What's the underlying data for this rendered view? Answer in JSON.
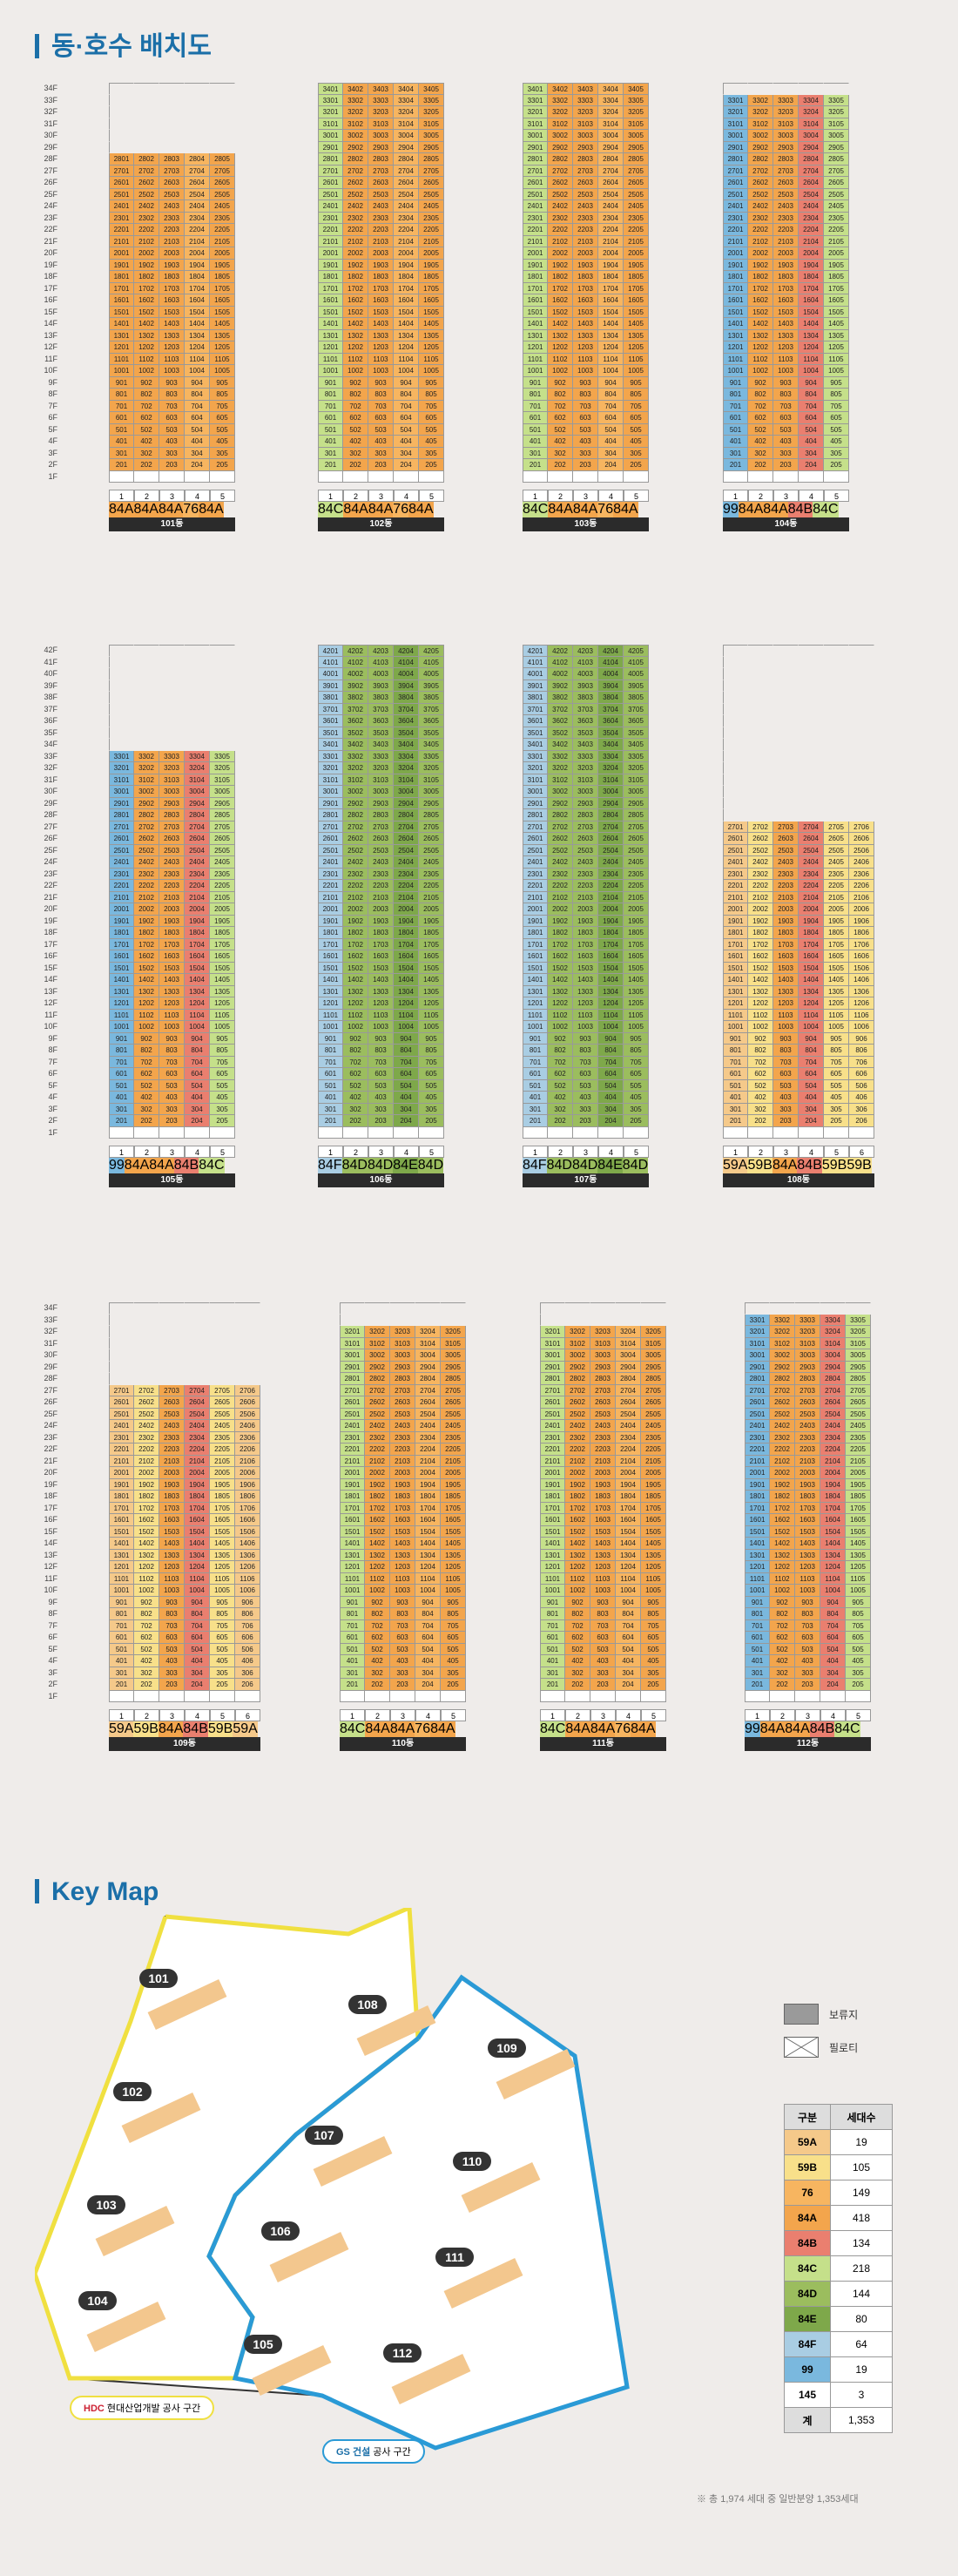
{
  "title_layout": "동·호수 배치도",
  "title_keymap": "Key Map",
  "type_colors": {
    "59A": "#f5c98a",
    "59B": "#f8e08a",
    "76": "#f7b560",
    "84A": "#f3a54c",
    "84B": "#ea7f6f",
    "84C": "#c5e08a",
    "84D": "#9bbd5e",
    "84E": "#7ea84a",
    "84F": "#a9cde3",
    "99": "#7ab8de",
    "145": "#ffffff",
    "hold": "#9a9a9a"
  },
  "buildings": [
    {
      "id": "101",
      "label": "101동",
      "floors": 28,
      "types": [
        "84A",
        "84A",
        "84A",
        "76",
        "84A"
      ],
      "nums": [
        "1",
        "2",
        "3",
        "4",
        "5"
      ]
    },
    {
      "id": "102",
      "label": "102동",
      "floors": 34,
      "types": [
        "84C",
        "84A",
        "84A",
        "76",
        "84A"
      ],
      "nums": [
        "1",
        "2",
        "3",
        "4",
        "5"
      ]
    },
    {
      "id": "103",
      "label": "103동",
      "floors": 34,
      "types": [
        "84C",
        "84A",
        "84A",
        "76",
        "84A"
      ],
      "nums": [
        "1",
        "2",
        "3",
        "4",
        "5"
      ]
    },
    {
      "id": "104",
      "label": "104동",
      "floors": 33,
      "types": [
        "99",
        "84A",
        "84A",
        "84B",
        "84C"
      ],
      "nums": [
        "1",
        "2",
        "3",
        "4",
        "5"
      ]
    },
    {
      "id": "105",
      "label": "105동",
      "floors": 33,
      "types": [
        "99",
        "84A",
        "84A",
        "84B",
        "84C"
      ],
      "nums": [
        "1",
        "2",
        "3",
        "4",
        "5"
      ]
    },
    {
      "id": "106",
      "label": "106동",
      "floors": 42,
      "types": [
        "84F",
        "84D",
        "84D",
        "84E",
        "84D"
      ],
      "nums": [
        "1",
        "2",
        "3",
        "4",
        "5"
      ]
    },
    {
      "id": "107",
      "label": "107동",
      "floors": 42,
      "types": [
        "84F",
        "84D",
        "84D",
        "84E",
        "84D"
      ],
      "nums": [
        "1",
        "2",
        "3",
        "4",
        "5"
      ]
    },
    {
      "id": "108",
      "label": "108동",
      "floors": 27,
      "types": [
        "59A",
        "59B",
        "84A",
        "84B",
        "59B",
        "59B"
      ],
      "nums": [
        "1",
        "2",
        "3",
        "4",
        "5",
        "6"
      ]
    },
    {
      "id": "109",
      "label": "109동",
      "floors": 27,
      "types": [
        "59A",
        "59B",
        "84A",
        "84B",
        "59B",
        "59A"
      ],
      "nums": [
        "1",
        "2",
        "3",
        "4",
        "5",
        "6"
      ]
    },
    {
      "id": "110",
      "label": "110동",
      "floors": 32,
      "types": [
        "84C",
        "84A",
        "84A",
        "76",
        "84A"
      ],
      "nums": [
        "1",
        "2",
        "3",
        "4",
        "5"
      ]
    },
    {
      "id": "111",
      "label": "111동",
      "floors": 32,
      "types": [
        "84C",
        "84A",
        "84A",
        "76",
        "84A"
      ],
      "nums": [
        "1",
        "2",
        "3",
        "4",
        "5"
      ]
    },
    {
      "id": "112",
      "label": "112동",
      "floors": 33,
      "types": [
        "99",
        "84A",
        "84A",
        "84B",
        "84C"
      ],
      "nums": [
        "1",
        "2",
        "3",
        "4",
        "5"
      ]
    }
  ],
  "keymap": {
    "buildings": [
      "101",
      "102",
      "103",
      "104",
      "105",
      "106",
      "107",
      "108",
      "109",
      "110",
      "111",
      "112"
    ],
    "hdc_label": "현대산업개발 공사 구간",
    "gs_label": "공사 구간",
    "hdc_logo": "HDC",
    "gs_logo": "GS 건설"
  },
  "legend": {
    "hold": "보류지",
    "pilot": "필로티"
  },
  "type_table": {
    "header": [
      "구분",
      "세대수"
    ],
    "rows": [
      [
        "59A",
        "19"
      ],
      [
        "59B",
        "105"
      ],
      [
        "76",
        "149"
      ],
      [
        "84A",
        "418"
      ],
      [
        "84B",
        "134"
      ],
      [
        "84C",
        "218"
      ],
      [
        "84D",
        "144"
      ],
      [
        "84E",
        "80"
      ],
      [
        "84F",
        "64"
      ],
      [
        "99",
        "19"
      ],
      [
        "145",
        "3"
      ],
      [
        "계",
        "1,353"
      ]
    ]
  },
  "note": "※ 총 1,974 세대 중 일반분양 1,353세대"
}
